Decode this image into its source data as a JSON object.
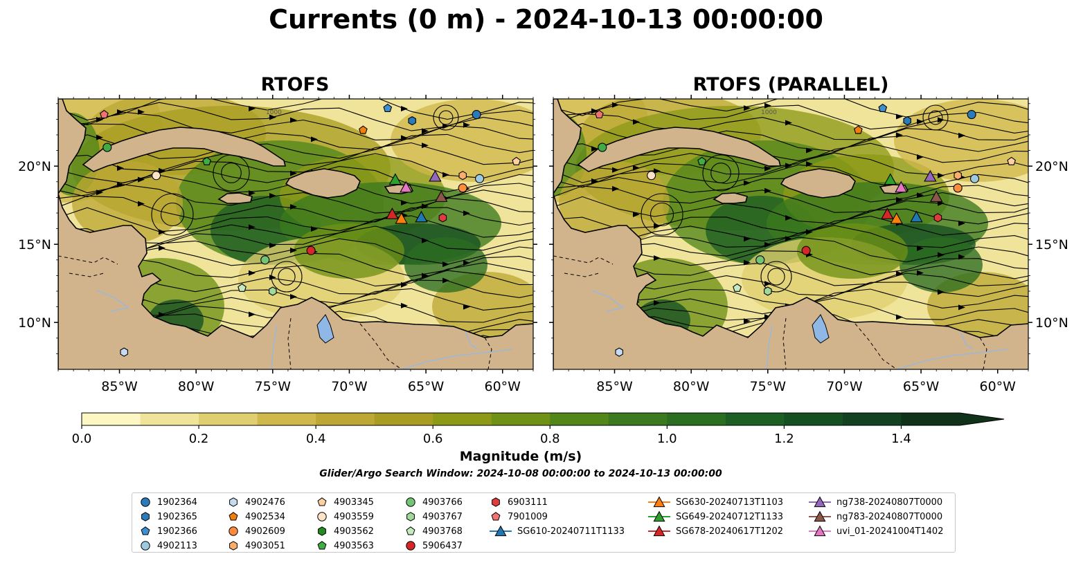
{
  "title": "Currents (0 m) - 2024-10-13 00:00:00",
  "panels": [
    {
      "title": "RTOFS"
    },
    {
      "title": "RTOFS (PARALLEL)"
    }
  ],
  "axes": {
    "lon_ticks": [
      "85°W",
      "80°W",
      "75°W",
      "70°W",
      "65°W",
      "60°W"
    ],
    "lat_ticks": [
      "20°N",
      "15°N",
      "10°N"
    ]
  },
  "contour_label": "1000",
  "colorbar": {
    "label": "Magnitude (m/s)",
    "ticks": [
      "0.0",
      "0.2",
      "0.4",
      "0.6",
      "0.8",
      "1.0",
      "1.2",
      "1.4"
    ],
    "range": [
      0.0,
      1.5
    ],
    "bins": [
      "#fdf7c4",
      "#f0e49a",
      "#e0cf70",
      "#cfb94c",
      "#bda835",
      "#a89d22",
      "#8d9a18",
      "#6e9116",
      "#528619",
      "#3b7a1e",
      "#2b6d21",
      "#1d5e24",
      "#164f22",
      "#124020",
      "#10321b"
    ],
    "extend": "max"
  },
  "search_window": "Glider/Argo Search Window: 2024-10-08 00:00:00 to 2024-10-13 00:00:00",
  "legend": {
    "columns": [
      [
        {
          "id": "1902364",
          "marker": "circle",
          "color": "#2b7bba"
        },
        {
          "id": "1902365",
          "marker": "hexagon",
          "color": "#2b7bba"
        },
        {
          "id": "1902366",
          "marker": "pentagon",
          "color": "#3e8fcf"
        },
        {
          "id": "4902113",
          "marker": "circle",
          "color": "#9ecae1"
        }
      ],
      [
        {
          "id": "4902476",
          "marker": "hexagon",
          "color": "#c6dbef"
        },
        {
          "id": "4902534",
          "marker": "pentagon",
          "color": "#f07f0e"
        },
        {
          "id": "4902609",
          "marker": "circle",
          "color": "#fd8d3c"
        },
        {
          "id": "4903051",
          "marker": "hexagon",
          "color": "#fdae6b"
        }
      ],
      [
        {
          "id": "4903345",
          "marker": "pentagon",
          "color": "#fdd0a2"
        },
        {
          "id": "4903559",
          "marker": "circle",
          "color": "#fde3c7"
        },
        {
          "id": "4903562",
          "marker": "hexagon",
          "color": "#238b22"
        },
        {
          "id": "4903563",
          "marker": "pentagon",
          "color": "#41ab45"
        }
      ],
      [
        {
          "id": "4903766",
          "marker": "circle",
          "color": "#74c476"
        },
        {
          "id": "4903767",
          "marker": "hexagon",
          "color": "#a1d99b"
        },
        {
          "id": "4903768",
          "marker": "pentagon",
          "color": "#c7e9c0"
        },
        {
          "id": "5906437",
          "marker": "circle",
          "color": "#d62728"
        }
      ],
      [
        {
          "id": "6903111",
          "marker": "hexagon",
          "color": "#e03c3c"
        },
        {
          "id": "7901009",
          "marker": "pentagon",
          "color": "#f07373"
        },
        {
          "id": "SG610-20240711T1133",
          "marker": "triangle-line",
          "color": "#1f77b4"
        }
      ],
      [
        {
          "id": "SG630-20240713T1103",
          "marker": "triangle-line",
          "color": "#ff7f0e"
        },
        {
          "id": "SG649-20240712T1133",
          "marker": "triangle-line",
          "color": "#2ca02c"
        },
        {
          "id": "SG678-20240617T1202",
          "marker": "triangle-line",
          "color": "#d62728"
        }
      ],
      [
        {
          "id": "ng738-20240807T0000",
          "marker": "triangle-line",
          "color": "#9467bd"
        },
        {
          "id": "ng783-20240807T0000",
          "marker": "triangle-line",
          "color": "#8c564b"
        },
        {
          "id": "uvi_01-20241004T1402",
          "marker": "triangle-line",
          "color": "#e377c2"
        }
      ]
    ]
  },
  "map_colors": {
    "land": "#d2b48c",
    "lake": "#8fb8e6",
    "river": "#9bb8d8",
    "coast": "#000000"
  },
  "map_extent": {
    "lon": [
      -89,
      -58
    ],
    "lat": [
      7,
      24.3
    ]
  },
  "panel_markers": [
    [
      {
        "kind": "pentagon",
        "color": "#f07373",
        "lon": -86,
        "lat": 23.3
      },
      {
        "kind": "pentagon",
        "color": "#3e8fcf",
        "lon": -67.5,
        "lat": 23.7
      },
      {
        "kind": "circle",
        "color": "#2b7bba",
        "lon": -61.7,
        "lat": 23.3
      },
      {
        "kind": "hexagon",
        "color": "#2b7bba",
        "lon": -65.9,
        "lat": 22.9
      },
      {
        "kind": "pentagon",
        "color": "#f07f0e",
        "lon": -69.1,
        "lat": 22.3
      },
      {
        "kind": "circle",
        "color": "#41ab45",
        "lon": -85.8,
        "lat": 21.2
      },
      {
        "kind": "pentagon",
        "color": "#41ab45",
        "lon": -79.3,
        "lat": 20.3
      },
      {
        "kind": "circle",
        "color": "#fde3c7",
        "lon": -82.6,
        "lat": 19.4
      },
      {
        "kind": "pentagon",
        "color": "#fdd0a2",
        "lon": -59.1,
        "lat": 20.3
      },
      {
        "kind": "hexagon",
        "color": "#fdae6b",
        "lon": -62.6,
        "lat": 19.4
      },
      {
        "kind": "circle",
        "color": "#9ecae1",
        "lon": -61.5,
        "lat": 19.2
      },
      {
        "kind": "circle",
        "color": "#fd8d3c",
        "lon": -62.6,
        "lat": 18.6
      },
      {
        "kind": "hexagon",
        "color": "#e03c3c",
        "lon": -63.9,
        "lat": 16.7
      },
      {
        "kind": "circle",
        "color": "#d62728",
        "lon": -72.5,
        "lat": 14.6
      },
      {
        "kind": "circle",
        "color": "#74c476",
        "lon": -75.5,
        "lat": 14.0
      },
      {
        "kind": "pentagon",
        "color": "#c7e9c0",
        "lon": -77.0,
        "lat": 12.2
      },
      {
        "kind": "hexagon",
        "color": "#a1d99b",
        "lon": -75.0,
        "lat": 12.0
      },
      {
        "kind": "hexagon",
        "color": "#c6dbef",
        "lon": -84.7,
        "lat": 8.1
      },
      {
        "kind": "triangle",
        "color": "#2ca02c",
        "lon": -67.0,
        "lat": 19.1
      },
      {
        "kind": "triangle",
        "color": "#e377c2",
        "lon": -66.3,
        "lat": 18.6
      },
      {
        "kind": "triangle",
        "color": "#9467bd",
        "lon": -64.4,
        "lat": 19.3
      },
      {
        "kind": "triangle",
        "color": "#8c564b",
        "lon": -64.0,
        "lat": 18.0
      },
      {
        "kind": "triangle",
        "color": "#d62728",
        "lon": -67.2,
        "lat": 16.9
      },
      {
        "kind": "triangle",
        "color": "#ff7f0e",
        "lon": -66.6,
        "lat": 16.6
      },
      {
        "kind": "triangle",
        "color": "#1f77b4",
        "lon": -65.3,
        "lat": 16.7
      }
    ],
    [
      {
        "kind": "pentagon",
        "color": "#f07373",
        "lon": -86,
        "lat": 23.3
      },
      {
        "kind": "pentagon",
        "color": "#3e8fcf",
        "lon": -67.5,
        "lat": 23.7
      },
      {
        "kind": "circle",
        "color": "#2b7bba",
        "lon": -61.7,
        "lat": 23.3
      },
      {
        "kind": "hexagon",
        "color": "#2b7bba",
        "lon": -65.9,
        "lat": 22.9
      },
      {
        "kind": "pentagon",
        "color": "#f07f0e",
        "lon": -69.1,
        "lat": 22.3
      },
      {
        "kind": "circle",
        "color": "#41ab45",
        "lon": -85.8,
        "lat": 21.2
      },
      {
        "kind": "pentagon",
        "color": "#41ab45",
        "lon": -79.3,
        "lat": 20.3
      },
      {
        "kind": "circle",
        "color": "#fde3c7",
        "lon": -82.6,
        "lat": 19.4
      },
      {
        "kind": "pentagon",
        "color": "#fdd0a2",
        "lon": -59.1,
        "lat": 20.3
      },
      {
        "kind": "hexagon",
        "color": "#fdae6b",
        "lon": -62.6,
        "lat": 19.4
      },
      {
        "kind": "circle",
        "color": "#9ecae1",
        "lon": -61.5,
        "lat": 19.2
      },
      {
        "kind": "circle",
        "color": "#fd8d3c",
        "lon": -62.6,
        "lat": 18.6
      },
      {
        "kind": "hexagon",
        "color": "#e03c3c",
        "lon": -63.9,
        "lat": 16.7
      },
      {
        "kind": "circle",
        "color": "#d62728",
        "lon": -72.5,
        "lat": 14.6
      },
      {
        "kind": "circle",
        "color": "#74c476",
        "lon": -75.5,
        "lat": 14.0
      },
      {
        "kind": "pentagon",
        "color": "#c7e9c0",
        "lon": -77.0,
        "lat": 12.2
      },
      {
        "kind": "hexagon",
        "color": "#a1d99b",
        "lon": -75.0,
        "lat": 12.0
      },
      {
        "kind": "hexagon",
        "color": "#c6dbef",
        "lon": -84.7,
        "lat": 8.1
      },
      {
        "kind": "triangle",
        "color": "#2ca02c",
        "lon": -67.0,
        "lat": 19.1
      },
      {
        "kind": "triangle",
        "color": "#e377c2",
        "lon": -66.3,
        "lat": 18.6
      },
      {
        "kind": "triangle",
        "color": "#9467bd",
        "lon": -64.4,
        "lat": 19.3
      },
      {
        "kind": "triangle",
        "color": "#8c564b",
        "lon": -64.0,
        "lat": 18.0
      },
      {
        "kind": "triangle",
        "color": "#d62728",
        "lon": -67.2,
        "lat": 16.9
      },
      {
        "kind": "triangle",
        "color": "#ff7f0e",
        "lon": -66.6,
        "lat": 16.6
      },
      {
        "kind": "triangle",
        "color": "#1f77b4",
        "lon": -65.3,
        "lat": 16.7
      }
    ]
  ]
}
